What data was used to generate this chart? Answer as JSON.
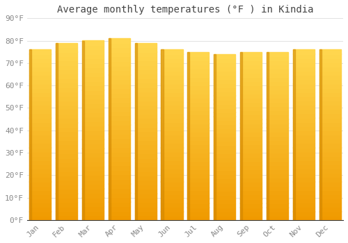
{
  "title": "Average monthly temperatures (°F ) in Kindia",
  "months": [
    "Jan",
    "Feb",
    "Mar",
    "Apr",
    "May",
    "Jun",
    "Jul",
    "Aug",
    "Sep",
    "Oct",
    "Nov",
    "Dec"
  ],
  "values": [
    76,
    79,
    80,
    81,
    79,
    76,
    75,
    74,
    75,
    75,
    76,
    76
  ],
  "bar_color_left": "#F0A010",
  "bar_color_right": "#FFD060",
  "bar_color_bottom": "#E09000",
  "background_color": "#FFFFFF",
  "grid_color": "#DDDDDD",
  "axis_color": "#AAAAAA",
  "ylim": [
    0,
    90
  ],
  "ytick_step": 10,
  "title_fontsize": 10,
  "tick_fontsize": 8,
  "font_family": "monospace",
  "title_color": "#444444",
  "tick_color": "#888888"
}
